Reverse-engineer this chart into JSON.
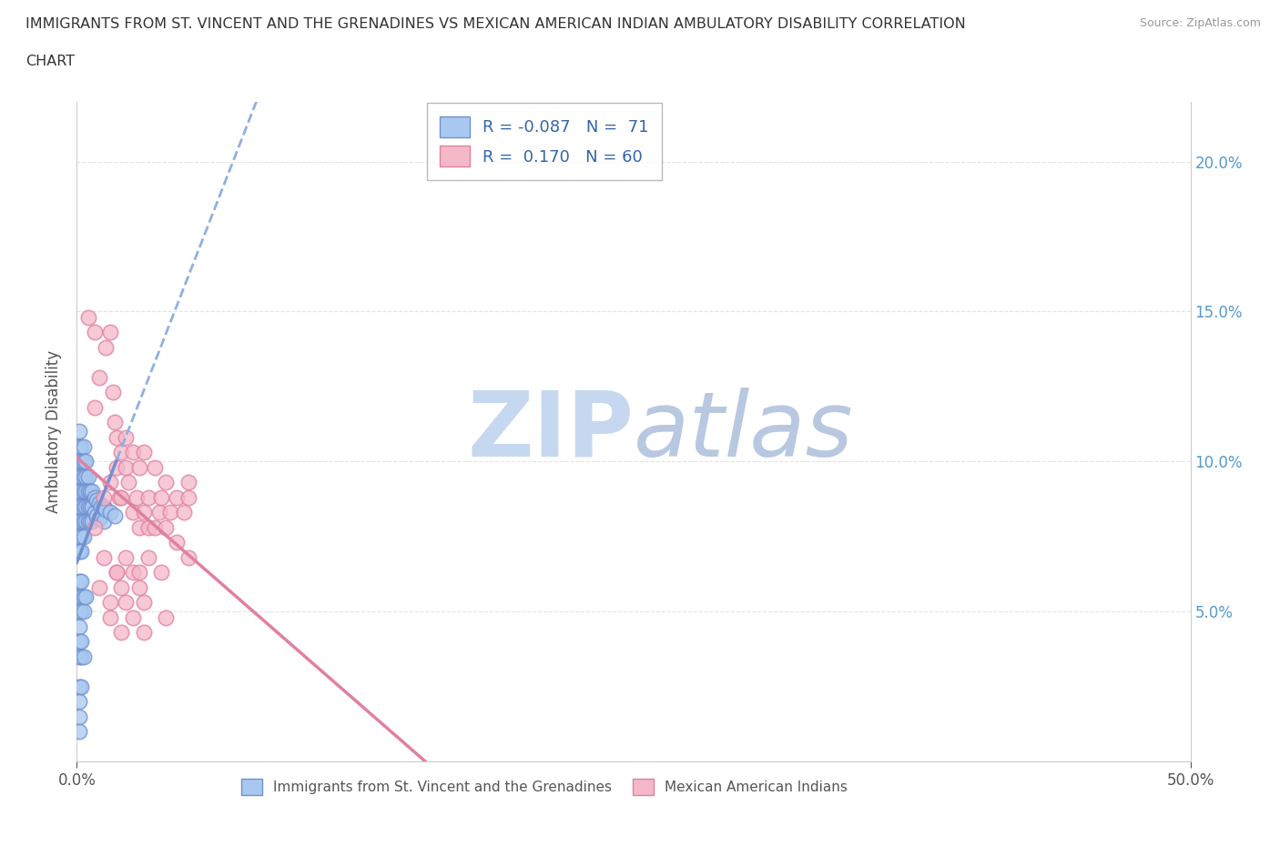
{
  "title_line1": "IMMIGRANTS FROM ST. VINCENT AND THE GRENADINES VS MEXICAN AMERICAN INDIAN AMBULATORY DISABILITY CORRELATION",
  "title_line2": "CHART",
  "source": "Source: ZipAtlas.com",
  "ylabel": "Ambulatory Disability",
  "xlim": [
    0.0,
    0.5
  ],
  "ylim": [
    0.0,
    0.22
  ],
  "plot_ylim": [
    0.0,
    0.22
  ],
  "xticks": [
    0.0,
    0.5
  ],
  "xticklabels": [
    "0.0%",
    "50.0%"
  ],
  "yticks": [
    0.0,
    0.05,
    0.1,
    0.15,
    0.2
  ],
  "yticklabels_right": [
    "",
    "5.0%",
    "10.0%",
    "15.0%",
    "20.0%"
  ],
  "blue_color": "#a8c8f0",
  "pink_color": "#f4b8c8",
  "blue_edge": "#7090d0",
  "pink_edge": "#e080a0",
  "trend_blue_solid": "#7090d0",
  "trend_blue_dash": "#90b0e0",
  "trend_pink": "#e080a0",
  "legend_blue_label": "R = -0.087   N =  71",
  "legend_pink_label": "R =  0.170   N = 60",
  "legend_bottom_blue": "Immigrants from St. Vincent and the Grenadines",
  "legend_bottom_pink": "Mexican American Indians",
  "watermark_part1": "ZIP",
  "watermark_part2": "atlas",
  "watermark_color1": "#c8d8f0",
  "watermark_color2": "#c0c8e0",
  "grid_color": "#dddddd",
  "blue_scatter_x": [
    0.001,
    0.001,
    0.001,
    0.001,
    0.001,
    0.001,
    0.001,
    0.001,
    0.001,
    0.002,
    0.002,
    0.002,
    0.002,
    0.002,
    0.002,
    0.002,
    0.002,
    0.003,
    0.003,
    0.003,
    0.003,
    0.003,
    0.003,
    0.003,
    0.004,
    0.004,
    0.004,
    0.004,
    0.004,
    0.005,
    0.005,
    0.005,
    0.005,
    0.006,
    0.006,
    0.006,
    0.007,
    0.007,
    0.007,
    0.008,
    0.008,
    0.009,
    0.009,
    0.01,
    0.01,
    0.011,
    0.012,
    0.012,
    0.013,
    0.015,
    0.017,
    0.001,
    0.001,
    0.001,
    0.001,
    0.002,
    0.002,
    0.002,
    0.003,
    0.003,
    0.004,
    0.001,
    0.001,
    0.002,
    0.002,
    0.003,
    0.001,
    0.001,
    0.002,
    0.001,
    0.001
  ],
  "blue_scatter_y": [
    0.11,
    0.105,
    0.1,
    0.095,
    0.09,
    0.085,
    0.08,
    0.075,
    0.07,
    0.105,
    0.1,
    0.095,
    0.09,
    0.085,
    0.08,
    0.075,
    0.07,
    0.105,
    0.1,
    0.095,
    0.09,
    0.085,
    0.08,
    0.075,
    0.1,
    0.095,
    0.09,
    0.085,
    0.08,
    0.095,
    0.09,
    0.085,
    0.08,
    0.09,
    0.085,
    0.08,
    0.09,
    0.085,
    0.08,
    0.088,
    0.083,
    0.087,
    0.082,
    0.086,
    0.081,
    0.085,
    0.085,
    0.08,
    0.084,
    0.083,
    0.082,
    0.06,
    0.055,
    0.05,
    0.045,
    0.06,
    0.055,
    0.05,
    0.055,
    0.05,
    0.055,
    0.04,
    0.035,
    0.04,
    0.035,
    0.035,
    0.025,
    0.02,
    0.025,
    0.015,
    0.01
  ],
  "pink_scatter_x": [
    0.005,
    0.008,
    0.008,
    0.01,
    0.012,
    0.013,
    0.015,
    0.015,
    0.016,
    0.017,
    0.018,
    0.018,
    0.019,
    0.02,
    0.02,
    0.022,
    0.022,
    0.023,
    0.025,
    0.025,
    0.027,
    0.028,
    0.028,
    0.03,
    0.03,
    0.032,
    0.032,
    0.035,
    0.035,
    0.037,
    0.038,
    0.04,
    0.04,
    0.042,
    0.045,
    0.045,
    0.048,
    0.05,
    0.05,
    0.05,
    0.01,
    0.015,
    0.018,
    0.02,
    0.022,
    0.025,
    0.028,
    0.03,
    0.008,
    0.012,
    0.018,
    0.022,
    0.028,
    0.032,
    0.038,
    0.015,
    0.02,
    0.025,
    0.03,
    0.04
  ],
  "pink_scatter_y": [
    0.148,
    0.143,
    0.118,
    0.128,
    0.088,
    0.138,
    0.093,
    0.143,
    0.123,
    0.113,
    0.098,
    0.108,
    0.088,
    0.103,
    0.088,
    0.098,
    0.108,
    0.093,
    0.103,
    0.083,
    0.088,
    0.098,
    0.078,
    0.103,
    0.083,
    0.088,
    0.078,
    0.098,
    0.078,
    0.083,
    0.088,
    0.078,
    0.093,
    0.083,
    0.088,
    0.073,
    0.083,
    0.093,
    0.088,
    0.068,
    0.058,
    0.053,
    0.063,
    0.058,
    0.053,
    0.063,
    0.058,
    0.053,
    0.078,
    0.068,
    0.063,
    0.068,
    0.063,
    0.068,
    0.063,
    0.048,
    0.043,
    0.048,
    0.043,
    0.048
  ]
}
